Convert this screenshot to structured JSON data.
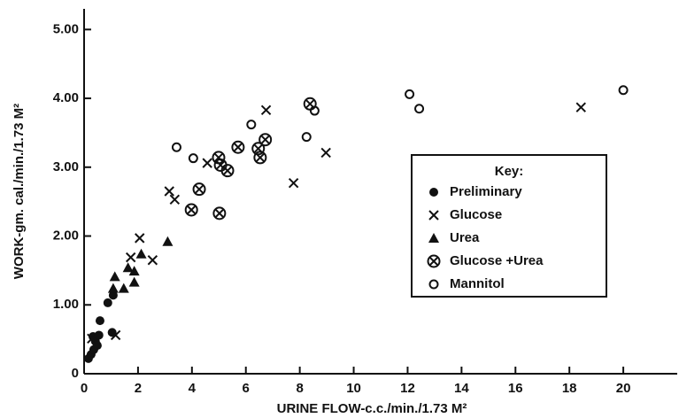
{
  "chart_data": {
    "type": "scatter",
    "x_label": "URINE FLOW-c.c./min./1.73 M²",
    "y_label": "WORK-gm. cal./min./1.73 M²",
    "legend_title": "Key:",
    "xlim": [
      0,
      22
    ],
    "xticks": [
      0,
      2,
      4,
      6,
      8,
      10,
      12,
      14,
      16,
      18,
      20
    ],
    "ylim": [
      0,
      5.3
    ],
    "yticks": [
      0,
      {
        "value": 1,
        "label": "1.00"
      },
      {
        "value": 2,
        "label": "2.00"
      },
      {
        "value": 3,
        "label": "3.00"
      },
      {
        "value": 4,
        "label": "4.00"
      },
      {
        "value": 5,
        "label": "5.00"
      }
    ],
    "series": [
      {
        "name": "Preliminary",
        "marker": "filled-circle",
        "color": "#111",
        "x": [
          0.16,
          0.26,
          0.36,
          0.42,
          0.33,
          0.55,
          0.49,
          0.59,
          0.88,
          1.04,
          1.08
        ],
        "y": [
          0.22,
          0.28,
          0.35,
          0.47,
          0.54,
          0.56,
          0.41,
          0.77,
          1.03,
          0.6,
          1.14
        ]
      },
      {
        "name": "Glucose",
        "marker": "x",
        "color": "#111",
        "x": [
          0.29,
          1.17,
          1.73,
          2.06,
          2.54,
          3.16,
          3.36,
          4.57,
          6.75,
          7.77,
          8.97,
          18.43
        ],
        "y": [
          0.51,
          0.56,
          1.69,
          1.97,
          1.65,
          2.65,
          2.53,
          3.06,
          3.83,
          2.77,
          3.21,
          3.87
        ]
      },
      {
        "name": "Urea",
        "marker": "triangle",
        "color": "#111",
        "x": [
          1.14,
          1.08,
          1.47,
          1.63,
          1.86,
          1.86,
          2.12,
          3.1
        ],
        "y": [
          1.41,
          1.24,
          1.24,
          1.54,
          1.49,
          1.33,
          1.74,
          1.92
        ]
      },
      {
        "name": "Glucose +Urea",
        "marker": "circle-x",
        "color": "#111",
        "x": [
          3.98,
          4.27,
          4.99,
          5.06,
          5.32,
          5.02,
          5.71,
          6.46,
          6.53,
          6.72,
          8.38
        ],
        "y": [
          2.38,
          2.68,
          3.14,
          3.03,
          2.95,
          2.33,
          3.29,
          3.27,
          3.14,
          3.4,
          3.92
        ]
      },
      {
        "name": "Mannitol",
        "marker": "open-circle",
        "color": "#111",
        "x": [
          3.43,
          4.05,
          6.2,
          8.25,
          8.55,
          12.07,
          12.43,
          20.0
        ],
        "y": [
          3.29,
          3.13,
          3.62,
          3.44,
          3.82,
          4.06,
          3.85,
          4.12
        ]
      }
    ]
  }
}
